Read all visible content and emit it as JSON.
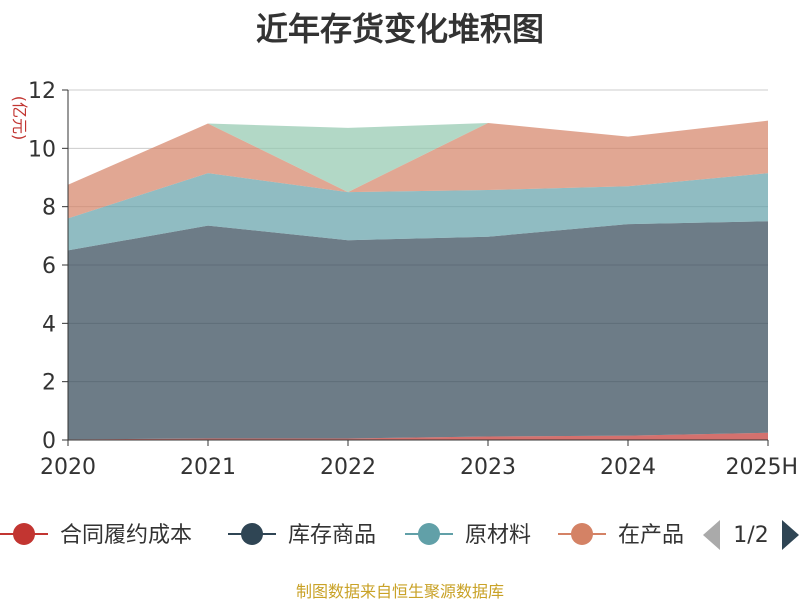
{
  "title": "近年存货变化堆积图",
  "footer": "制图数据来自恒生聚源数据库",
  "chart_data": {
    "type": "area",
    "stacked": true,
    "categories": [
      "2020",
      "2021",
      "2022",
      "2023",
      "2024",
      "2025H"
    ],
    "unit": "(亿元)",
    "ylim": [
      0,
      12
    ],
    "yticks": [
      0,
      2,
      4,
      6,
      8,
      10,
      12
    ],
    "grid": true,
    "series": [
      {
        "name": "合同履约成本",
        "color": "#c23531",
        "values": [
          0.02,
          0.05,
          0.05,
          0.12,
          0.15,
          0.25
        ]
      },
      {
        "name": "库存商品",
        "color": "#2f4554",
        "values": [
          6.48,
          7.3,
          6.8,
          6.85,
          7.25,
          7.25
        ]
      },
      {
        "name": "原材料",
        "color": "#61a0a8",
        "values": [
          1.1,
          1.8,
          1.65,
          1.6,
          1.3,
          1.65
        ]
      },
      {
        "name": "在产品",
        "color": "#d48265",
        "values": [
          1.15,
          1.7,
          0.0,
          2.3,
          1.7,
          1.8
        ]
      },
      {
        "name": "",
        "color": "#91c7ae",
        "values": [
          0.0,
          0.0,
          2.2,
          0.0,
          0.0,
          0.0
        ]
      }
    ],
    "legend": {
      "placement": "bottom",
      "visible_items": [
        "合同履约成本",
        "库存商品",
        "原材料",
        "在产品"
      ],
      "page": "1/2"
    }
  }
}
